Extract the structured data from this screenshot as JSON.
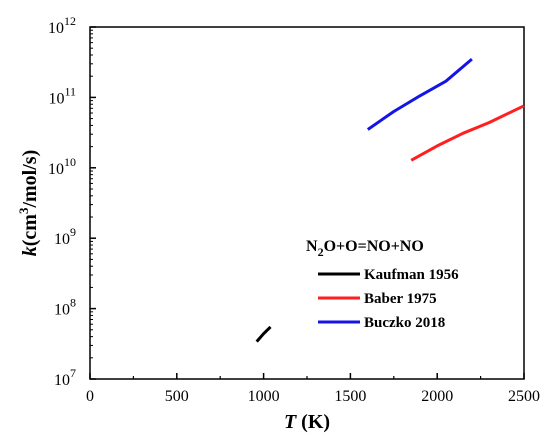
{
  "chart_data": {
    "type": "line",
    "title": "",
    "xlabel": {
      "var": "T",
      "unit": " (K)"
    },
    "ylabel": {
      "var": "k",
      "pre": "(cm",
      "sup": "3",
      "post": "/mol/s)"
    },
    "xlim": [
      0,
      2500
    ],
    "ylim_log10": [
      7,
      12
    ],
    "y_scale": "log",
    "x_ticks": [
      0,
      500,
      1000,
      1500,
      2000,
      2500
    ],
    "y_ticks": [
      {
        "base": "10",
        "exp": "7"
      },
      {
        "base": "10",
        "exp": "8"
      },
      {
        "base": "10",
        "exp": "9"
      },
      {
        "base": "10",
        "exp": "10"
      },
      {
        "base": "10",
        "exp": "11"
      },
      {
        "base": "10",
        "exp": "12"
      }
    ],
    "grid": false,
    "legend_position": "lower-right",
    "legend_title": {
      "a": "N",
      "sub": "2",
      "b": "O+O=NO+NO"
    },
    "series": [
      {
        "name": "Kaufman 1956",
        "color": "#000000",
        "points": [
          [
            960,
            34000000.0
          ],
          [
            1000,
            44000000.0
          ],
          [
            1040,
            55000000.0
          ]
        ]
      },
      {
        "name": "Baber 1975",
        "color": "#ff1f1f",
        "points": [
          [
            1850,
            12800000000.0
          ],
          [
            2000,
            20500000000.0
          ],
          [
            2150,
            31000000000.0
          ],
          [
            2300,
            44000000000.0
          ],
          [
            2500,
            76000000000.0
          ]
        ]
      },
      {
        "name": "Buczko 2018",
        "color": "#1414e6",
        "points": [
          [
            1600,
            35000000000.0
          ],
          [
            1750,
            63000000000.0
          ],
          [
            1900,
            105000000000.0
          ],
          [
            2050,
            170000000000.0
          ],
          [
            2200,
            350000000000.0
          ]
        ]
      }
    ]
  }
}
